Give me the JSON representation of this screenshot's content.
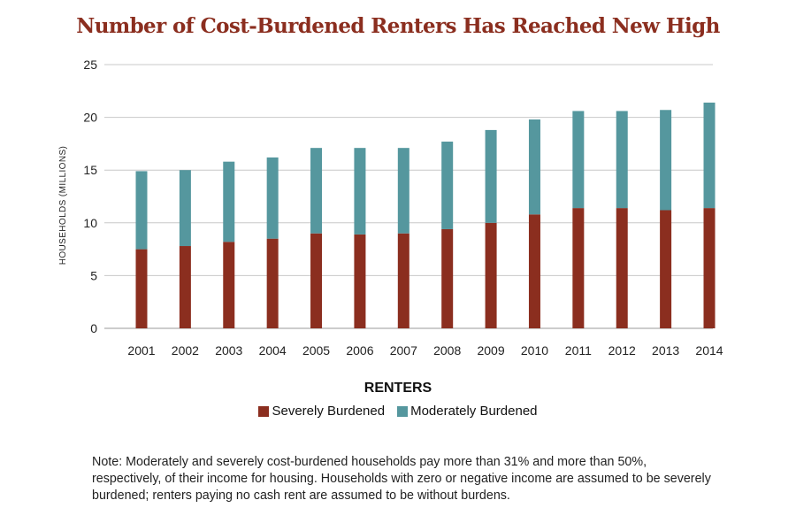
{
  "chart_data": {
    "type": "bar",
    "stacked": true,
    "title": "Number of Cost-Burdened Renters Has Reached New High",
    "ylabel": "HOUSEHOLDS (MILLIONS)",
    "xlabel": "",
    "ylim": [
      0,
      25
    ],
    "yticks": [
      0,
      5,
      10,
      15,
      20,
      25
    ],
    "grid": true,
    "legend_title": "RENTERS",
    "legend_position": "bottom",
    "categories": [
      "2001",
      "2002",
      "2003",
      "2004",
      "2005",
      "2006",
      "2007",
      "2008",
      "2009",
      "2010",
      "2011",
      "2012",
      "2013",
      "2014"
    ],
    "series": [
      {
        "name": "Severely Burdened",
        "color": "#8b2e1f",
        "values": [
          7.5,
          7.8,
          8.2,
          8.5,
          9.0,
          8.9,
          9.0,
          9.4,
          10.0,
          10.8,
          11.4,
          11.4,
          11.2,
          11.4
        ]
      },
      {
        "name": "Moderately Burdened",
        "color": "#55979e",
        "values": [
          7.4,
          7.2,
          7.6,
          7.7,
          8.1,
          8.2,
          8.1,
          8.3,
          8.8,
          9.0,
          9.2,
          9.2,
          9.5,
          10.0
        ]
      }
    ]
  },
  "note": "Note: Moderately and severely cost-burdened households pay more than 31% and more than 50%, respectively, of their income for housing. Households with zero or negative income are assumed to be severely burdened; renters paying no cash rent are assumed to be without burdens."
}
